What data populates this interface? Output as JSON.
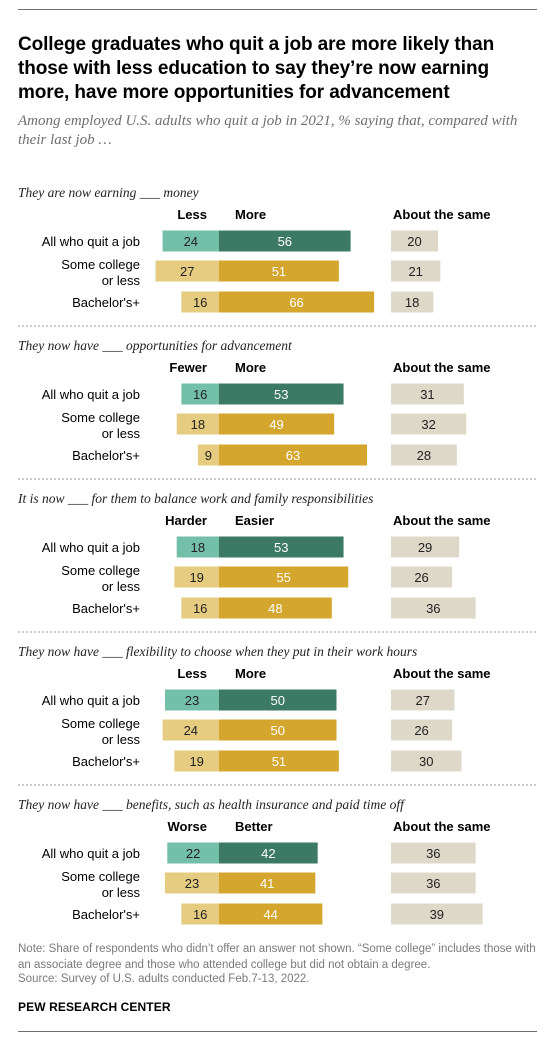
{
  "title": "College graduates who quit a job are more likely than those with less education to say they’re now earning more, have more opportunities for advancement",
  "subtitle": "Among employed U.S. adults who quit a job in 2021, % saying that, compared with their last job …",
  "note": "Note: Share of respondents who didn’t offer an answer not shown. “Some college” includes those with an associate degree and those who attended college but did not obtain a degree.",
  "source": "Source: Survey of U.S. adults conducted Feb.7-13, 2022.",
  "brand": "PEW RESEARCH CENTER",
  "colors": {
    "total_less": "#73bfa8",
    "total_more": "#3d7a66",
    "group_less": "#e6cc80",
    "group_more": "#d4a62e",
    "same": "#ddd8c8",
    "divider": "#999999"
  },
  "chart_data": {
    "type": "bar",
    "stacked": "diverging",
    "rows": [
      "All who quit a job",
      "Some college or less",
      "Bachelor's+"
    ],
    "panels": [
      {
        "question": "They are now earning ___ money",
        "labels": [
          "Less",
          "More",
          "About the same"
        ],
        "less": [
          24,
          27,
          16
        ],
        "more": [
          56,
          51,
          66
        ],
        "same": [
          20,
          21,
          18
        ]
      },
      {
        "question": "They now have ___ opportunities for advancement",
        "labels": [
          "Fewer",
          "More",
          "About the same"
        ],
        "less": [
          16,
          18,
          9
        ],
        "more": [
          53,
          49,
          63
        ],
        "same": [
          31,
          32,
          28
        ]
      },
      {
        "question": "It is now ___ for them to balance work and family responsibilities",
        "labels": [
          "Harder",
          "Easier",
          "About the same"
        ],
        "less": [
          18,
          19,
          16
        ],
        "more": [
          53,
          55,
          48
        ],
        "same": [
          29,
          26,
          36
        ]
      },
      {
        "question": "They now have ___ flexibility to choose when they put in their work hours",
        "labels": [
          "Less",
          "More",
          "About the same"
        ],
        "less": [
          23,
          24,
          19
        ],
        "more": [
          50,
          50,
          51
        ],
        "same": [
          27,
          26,
          30
        ]
      },
      {
        "question": "They now have ___ benefits, such as health insurance and paid time off",
        "labels": [
          "Worse",
          "Better",
          "About the same"
        ],
        "less": [
          22,
          23,
          16
        ],
        "more": [
          42,
          41,
          44
        ],
        "same": [
          36,
          36,
          39
        ]
      }
    ]
  }
}
